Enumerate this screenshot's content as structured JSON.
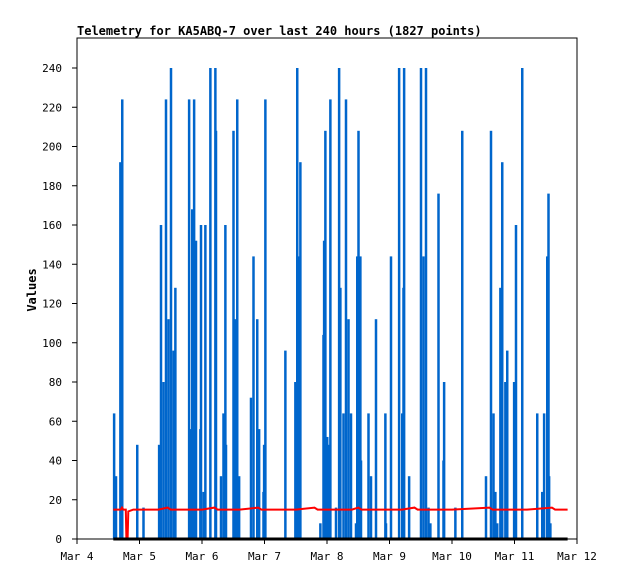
{
  "chart_data": {
    "type": "bar",
    "title": "Telemetry for KA5ABQ-7 over last 240 hours (1827 points)",
    "xlabel": "",
    "ylabel": "Values",
    "xlim": [
      0,
      8
    ],
    "x_unit": "days since Mar 4 00:00",
    "ylim": [
      0,
      255
    ],
    "x_ticks": [
      {
        "value": 0,
        "label": "Mar 4"
      },
      {
        "value": 1,
        "label": "Mar 5"
      },
      {
        "value": 2,
        "label": "Mar 6"
      },
      {
        "value": 3,
        "label": "Mar 7"
      },
      {
        "value": 4,
        "label": "Mar 8"
      },
      {
        "value": 5,
        "label": "Mar 9"
      },
      {
        "value": 6,
        "label": "Mar 10"
      },
      {
        "value": 7,
        "label": "Mar 11"
      },
      {
        "value": 8,
        "label": "Mar 12"
      }
    ],
    "y_ticks": [
      "0",
      "20",
      "40",
      "60",
      "80",
      "100",
      "120",
      "140",
      "160",
      "180",
      "200",
      "220",
      "240"
    ],
    "series": [
      {
        "name": "blue",
        "type": "bar",
        "color": "#0066cc",
        "points": [
          [
            0.59,
            64
          ],
          [
            0.62,
            32
          ],
          [
            0.69,
            192
          ],
          [
            0.72,
            224
          ],
          [
            0.96,
            48
          ],
          [
            1.06,
            16
          ],
          [
            1.31,
            48
          ],
          [
            1.34,
            160
          ],
          [
            1.38,
            80
          ],
          [
            1.42,
            224
          ],
          [
            1.46,
            112
          ],
          [
            1.5,
            240
          ],
          [
            1.54,
            96
          ],
          [
            1.57,
            128
          ],
          [
            1.79,
            224
          ],
          [
            1.82,
            56
          ],
          [
            1.84,
            168
          ],
          [
            1.87,
            224
          ],
          [
            1.9,
            152
          ],
          [
            1.97,
            56
          ],
          [
            1.98,
            160
          ],
          [
            2.02,
            24
          ],
          [
            2.05,
            160
          ],
          [
            2.13,
            240
          ],
          [
            2.21,
            240
          ],
          [
            2.22,
            208
          ],
          [
            2.3,
            32
          ],
          [
            2.34,
            64
          ],
          [
            2.37,
            160
          ],
          [
            2.38,
            48
          ],
          [
            2.5,
            208
          ],
          [
            2.53,
            112
          ],
          [
            2.56,
            224
          ],
          [
            2.59,
            32
          ],
          [
            2.78,
            72
          ],
          [
            2.82,
            144
          ],
          [
            2.88,
            112
          ],
          [
            2.91,
            56
          ],
          [
            2.98,
            24
          ],
          [
            2.99,
            48
          ],
          [
            3.01,
            224
          ],
          [
            3.33,
            96
          ],
          [
            3.49,
            80
          ],
          [
            3.52,
            240
          ],
          [
            3.54,
            144
          ],
          [
            3.57,
            192
          ],
          [
            3.89,
            8
          ],
          [
            3.94,
            104
          ],
          [
            3.95,
            152
          ],
          [
            3.97,
            208
          ],
          [
            4.0,
            52
          ],
          [
            4.02,
            48
          ],
          [
            4.05,
            224
          ],
          [
            4.14,
            16
          ],
          [
            4.19,
            240
          ],
          [
            4.21,
            128
          ],
          [
            4.26,
            64
          ],
          [
            4.3,
            224
          ],
          [
            4.34,
            112
          ],
          [
            4.38,
            64
          ],
          [
            4.46,
            8
          ],
          [
            4.48,
            144
          ],
          [
            4.5,
            208
          ],
          [
            4.53,
            144
          ],
          [
            4.54,
            40
          ],
          [
            4.66,
            64
          ],
          [
            4.7,
            32
          ],
          [
            4.78,
            112
          ],
          [
            4.93,
            64
          ],
          [
            4.94,
            8
          ],
          [
            5.02,
            144
          ],
          [
            5.15,
            240
          ],
          [
            5.2,
            64
          ],
          [
            5.22,
            128
          ],
          [
            5.23,
            240
          ],
          [
            5.31,
            32
          ],
          [
            5.5,
            240
          ],
          [
            5.54,
            144
          ],
          [
            5.58,
            240
          ],
          [
            5.62,
            16
          ],
          [
            5.65,
            8
          ],
          [
            5.78,
            176
          ],
          [
            5.86,
            40
          ],
          [
            5.87,
            80
          ],
          [
            6.05,
            16
          ],
          [
            6.16,
            208
          ],
          [
            6.54,
            32
          ],
          [
            6.62,
            208
          ],
          [
            6.66,
            64
          ],
          [
            6.69,
            24
          ],
          [
            6.72,
            8
          ],
          [
            6.77,
            128
          ],
          [
            6.8,
            192
          ],
          [
            6.85,
            80
          ],
          [
            6.88,
            96
          ],
          [
            6.99,
            80
          ],
          [
            7.02,
            160
          ],
          [
            7.12,
            240
          ],
          [
            7.36,
            64
          ],
          [
            7.44,
            24
          ],
          [
            7.47,
            64
          ],
          [
            7.52,
            144
          ],
          [
            7.54,
            176
          ],
          [
            7.55,
            32
          ],
          [
            7.57,
            8
          ]
        ]
      },
      {
        "name": "red",
        "type": "line",
        "color": "#ff0000",
        "points": [
          [
            0.58,
            15
          ],
          [
            0.7,
            15
          ],
          [
            0.72,
            16
          ],
          [
            0.74,
            15
          ],
          [
            0.78,
            15
          ],
          [
            0.79,
            0
          ],
          [
            0.81,
            0
          ],
          [
            0.82,
            14
          ],
          [
            0.9,
            15
          ],
          [
            1.3,
            15
          ],
          [
            1.45,
            16
          ],
          [
            1.5,
            15
          ],
          [
            2.0,
            15
          ],
          [
            2.2,
            16
          ],
          [
            2.25,
            15
          ],
          [
            2.6,
            15
          ],
          [
            2.9,
            16
          ],
          [
            2.95,
            15
          ],
          [
            3.5,
            15
          ],
          [
            3.8,
            16
          ],
          [
            3.85,
            15
          ],
          [
            4.4,
            15
          ],
          [
            4.5,
            16
          ],
          [
            4.55,
            15
          ],
          [
            5.2,
            15
          ],
          [
            5.4,
            16
          ],
          [
            5.45,
            15
          ],
          [
            6.0,
            15
          ],
          [
            6.6,
            16
          ],
          [
            6.65,
            15
          ],
          [
            7.2,
            15
          ],
          [
            7.6,
            16
          ],
          [
            7.65,
            15
          ],
          [
            7.85,
            15
          ]
        ]
      },
      {
        "name": "black",
        "type": "line",
        "color": "#000000",
        "points": [
          [
            0.58,
            0
          ],
          [
            7.85,
            0
          ]
        ]
      }
    ]
  }
}
